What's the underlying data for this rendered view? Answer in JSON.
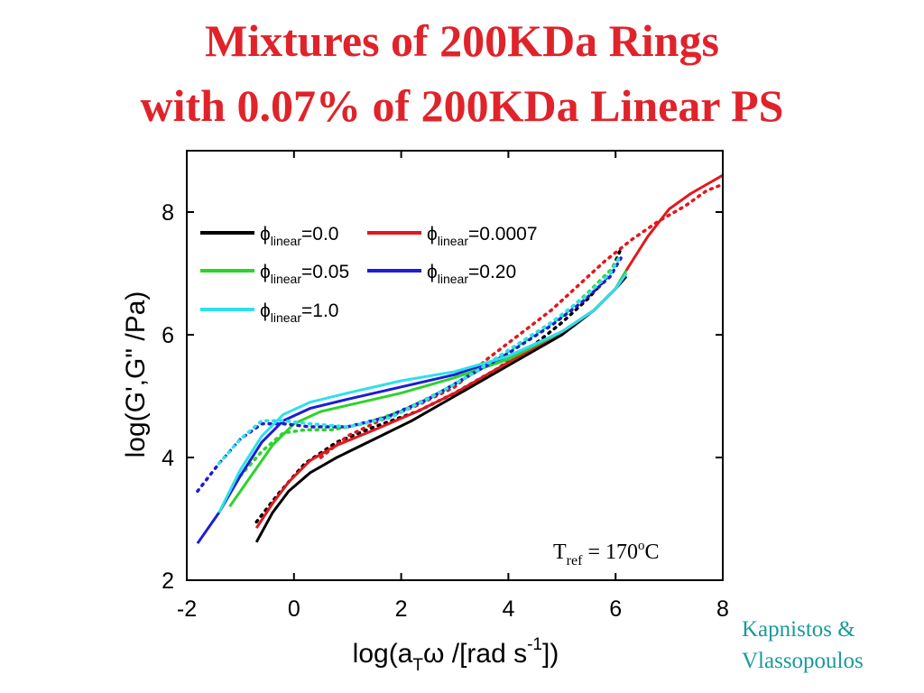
{
  "title": {
    "line1": "Mixtures of 200KDa Rings",
    "line2": "with 0.07% of 200KDa Linear PS"
  },
  "credit": {
    "line1": "Kapnistos &",
    "line2": "Vlassopoulos"
  },
  "colors": {
    "title": "#e0232a",
    "credit": "#1a9a9a"
  },
  "chart_data": {
    "type": "line",
    "xlabel_main": "log(a",
    "xlabel_sub": "T",
    "xlabel_mid": "ω /[rad s",
    "xlabel_sup": "-1",
    "xlabel_end": "])",
    "ylabel": "log(G',G\" /Pa)",
    "xlim": [
      -2,
      8
    ],
    "ylim": [
      2,
      9
    ],
    "xticks": [
      "-2",
      "0",
      "2",
      "4",
      "6",
      "8"
    ],
    "yticks": [
      "2",
      "4",
      "6",
      "8"
    ],
    "annotation": {
      "main": "T",
      "sub": "ref",
      "mid": " = 170",
      "sup": "o",
      "end": "C"
    },
    "legend_symbol": "ϕ",
    "legend_sub": "linear",
    "series": [
      {
        "name": "=0.0",
        "color": "#000000",
        "solid": [
          [
            -0.7,
            2.62
          ],
          [
            -0.4,
            3.1
          ],
          [
            -0.1,
            3.45
          ],
          [
            0.3,
            3.75
          ],
          [
            0.8,
            4.0
          ],
          [
            1.5,
            4.3
          ],
          [
            2.2,
            4.6
          ],
          [
            3.0,
            5.0
          ],
          [
            4.0,
            5.5
          ],
          [
            5.0,
            6.0
          ],
          [
            5.6,
            6.4
          ],
          [
            6.0,
            6.75
          ],
          [
            6.2,
            6.95
          ]
        ],
        "dotted": [
          [
            -0.7,
            2.95
          ],
          [
            -0.3,
            3.4
          ],
          [
            0.2,
            3.9
          ],
          [
            0.8,
            4.25
          ],
          [
            1.5,
            4.5
          ],
          [
            2.3,
            4.75
          ],
          [
            3.0,
            5.05
          ],
          [
            3.8,
            5.45
          ],
          [
            4.5,
            5.85
          ],
          [
            5.0,
            6.2
          ],
          [
            5.5,
            6.6
          ],
          [
            5.9,
            7.0
          ],
          [
            6.1,
            7.4
          ]
        ]
      },
      {
        "name": "=0.0007",
        "color": "#e3171d",
        "solid": [
          [
            -0.7,
            2.85
          ],
          [
            -0.4,
            3.25
          ],
          [
            -0.1,
            3.6
          ],
          [
            0.3,
            3.95
          ],
          [
            0.8,
            4.2
          ],
          [
            1.5,
            4.45
          ],
          [
            2.3,
            4.75
          ],
          [
            3.0,
            5.05
          ],
          [
            4.0,
            5.55
          ],
          [
            5.0,
            6.05
          ],
          [
            5.6,
            6.4
          ],
          [
            6.0,
            6.75
          ],
          [
            6.2,
            7.05
          ],
          [
            6.6,
            7.6
          ],
          [
            7.0,
            8.05
          ],
          [
            7.4,
            8.3
          ],
          [
            7.8,
            8.5
          ],
          [
            8.0,
            8.6
          ]
        ],
        "dotted": [
          [
            0.5,
            4.0
          ],
          [
            1.0,
            4.35
          ],
          [
            1.6,
            4.6
          ],
          [
            2.3,
            4.85
          ],
          [
            3.0,
            5.15
          ],
          [
            3.6,
            5.6
          ],
          [
            4.2,
            6.0
          ],
          [
            4.8,
            6.4
          ],
          [
            5.3,
            6.8
          ],
          [
            5.8,
            7.2
          ],
          [
            6.3,
            7.55
          ],
          [
            6.8,
            7.85
          ],
          [
            7.3,
            8.1
          ],
          [
            7.7,
            8.35
          ],
          [
            8.0,
            8.45
          ]
        ]
      },
      {
        "name": "=0.05",
        "color": "#2bd42b",
        "solid": [
          [
            -1.2,
            3.2
          ],
          [
            -0.8,
            3.7
          ],
          [
            -0.4,
            4.2
          ],
          [
            0.0,
            4.55
          ],
          [
            0.5,
            4.75
          ],
          [
            1.0,
            4.85
          ],
          [
            1.5,
            4.95
          ],
          [
            2.0,
            5.05
          ],
          [
            3.0,
            5.3
          ],
          [
            4.0,
            5.6
          ],
          [
            5.0,
            6.05
          ],
          [
            5.6,
            6.4
          ],
          [
            6.0,
            6.75
          ],
          [
            6.2,
            7.05
          ]
        ],
        "dotted": [
          [
            -1.0,
            3.7
          ],
          [
            -0.6,
            4.1
          ],
          [
            -0.2,
            4.4
          ],
          [
            0.2,
            4.45
          ],
          [
            0.7,
            4.45
          ],
          [
            1.3,
            4.55
          ],
          [
            2.0,
            4.75
          ],
          [
            2.8,
            5.1
          ],
          [
            3.5,
            5.45
          ],
          [
            4.3,
            5.9
          ],
          [
            5.0,
            6.3
          ],
          [
            5.5,
            6.7
          ],
          [
            5.9,
            7.05
          ],
          [
            6.1,
            7.3
          ]
        ]
      },
      {
        "name": "=0.20",
        "color": "#1d1dd6",
        "solid": [
          [
            -1.8,
            2.6
          ],
          [
            -1.4,
            3.1
          ],
          [
            -1.0,
            3.7
          ],
          [
            -0.6,
            4.25
          ],
          [
            -0.2,
            4.6
          ],
          [
            0.3,
            4.8
          ],
          [
            1.0,
            4.95
          ],
          [
            2.0,
            5.15
          ],
          [
            3.0,
            5.35
          ],
          [
            4.0,
            5.65
          ],
          [
            5.0,
            6.05
          ],
          [
            5.6,
            6.4
          ],
          [
            6.0,
            6.75
          ],
          [
            6.2,
            7.0
          ]
        ],
        "dotted": [
          [
            -1.8,
            3.45
          ],
          [
            -1.4,
            3.9
          ],
          [
            -1.0,
            4.3
          ],
          [
            -0.6,
            4.55
          ],
          [
            -0.2,
            4.55
          ],
          [
            0.3,
            4.5
          ],
          [
            1.0,
            4.5
          ],
          [
            1.7,
            4.65
          ],
          [
            2.5,
            4.95
          ],
          [
            3.3,
            5.35
          ],
          [
            4.0,
            5.7
          ],
          [
            4.8,
            6.15
          ],
          [
            5.4,
            6.55
          ],
          [
            5.9,
            6.95
          ],
          [
            6.1,
            7.25
          ]
        ]
      },
      {
        "name": "=1.0",
        "color": "#2ee0ea",
        "solid": [
          [
            -1.4,
            3.1
          ],
          [
            -1.0,
            3.8
          ],
          [
            -0.6,
            4.35
          ],
          [
            -0.2,
            4.7
          ],
          [
            0.3,
            4.9
          ],
          [
            1.0,
            5.05
          ],
          [
            2.0,
            5.25
          ],
          [
            3.0,
            5.4
          ],
          [
            4.0,
            5.65
          ],
          [
            5.0,
            6.05
          ],
          [
            5.6,
            6.4
          ],
          [
            6.0,
            6.75
          ],
          [
            6.2,
            7.0
          ]
        ],
        "dotted": [
          [
            -1.4,
            3.9
          ],
          [
            -1.0,
            4.3
          ],
          [
            -0.6,
            4.6
          ],
          [
            -0.2,
            4.6
          ],
          [
            0.3,
            4.55
          ],
          [
            1.0,
            4.5
          ],
          [
            1.8,
            4.65
          ],
          [
            2.6,
            5.0
          ],
          [
            3.3,
            5.35
          ],
          [
            4.0,
            5.75
          ],
          [
            4.8,
            6.2
          ],
          [
            5.4,
            6.6
          ],
          [
            5.9,
            7.0
          ],
          [
            6.1,
            7.3
          ]
        ]
      }
    ]
  }
}
